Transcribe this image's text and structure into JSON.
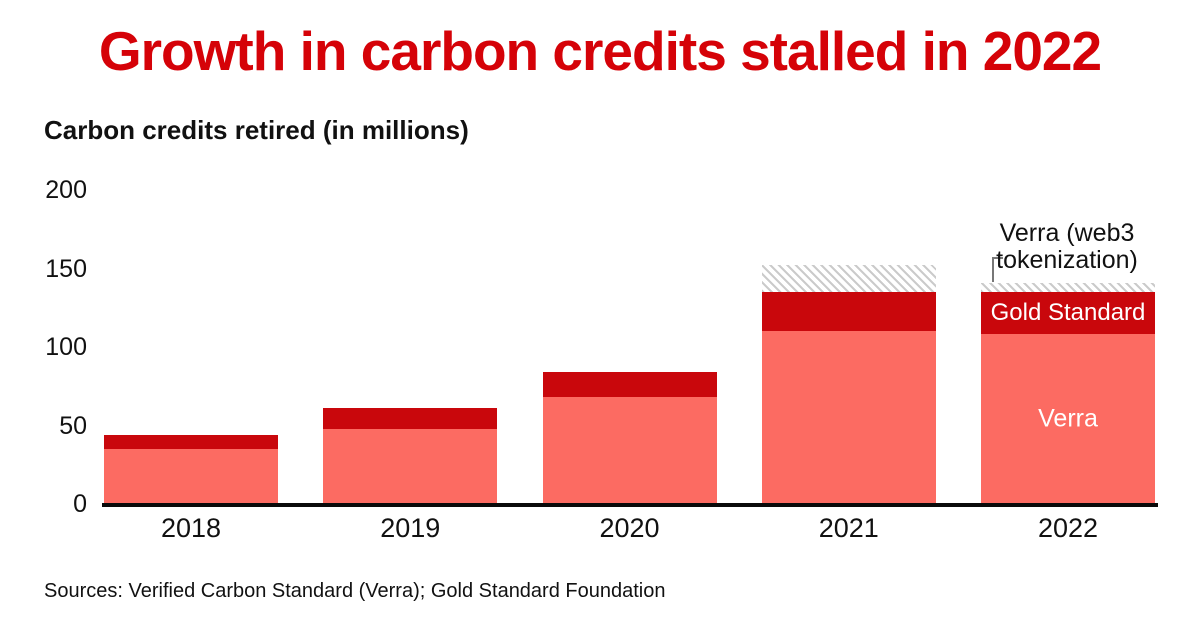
{
  "title": "Growth in carbon credits stalled in 2022",
  "subtitle": "Carbon credits retired (in millions)",
  "source_note": "Sources: Verified Carbon Standard (Verra); Gold Standard Foundation",
  "annotation": "Verra (web3 tokenization)",
  "bar_labels": {
    "verra": "Verra",
    "gold_standard": "Gold Standard"
  },
  "colors": {
    "title_red": "#d50208",
    "verra": "#fc6b62",
    "gold_standard": "#c9070c",
    "hatch_stripe": "#cbcbcb",
    "axis": "#0a0a0a",
    "label_white": "#ffffff"
  },
  "chart_data": {
    "type": "bar",
    "stacked": true,
    "title": "Growth in carbon credits stalled in 2022",
    "ylabel": "Carbon credits retired (in millions)",
    "categories": [
      "2018",
      "2019",
      "2020",
      "2021",
      "2022"
    ],
    "series": [
      {
        "name": "Verra",
        "key": "verra",
        "values": [
          35,
          48,
          68,
          110,
          108
        ]
      },
      {
        "name": "Gold Standard",
        "key": "gold",
        "values": [
          9,
          13,
          16,
          25,
          27
        ]
      },
      {
        "name": "Verra (web3 tokenization)",
        "key": "web3",
        "values": [
          0,
          0,
          0,
          17,
          6
        ]
      }
    ],
    "totals": [
      44,
      61,
      84,
      152,
      141
    ],
    "yticks": [
      0,
      50,
      100,
      150,
      200
    ],
    "ylim": [
      0,
      200
    ],
    "grid": false,
    "legend_position": "labels-inside-last-bar"
  }
}
